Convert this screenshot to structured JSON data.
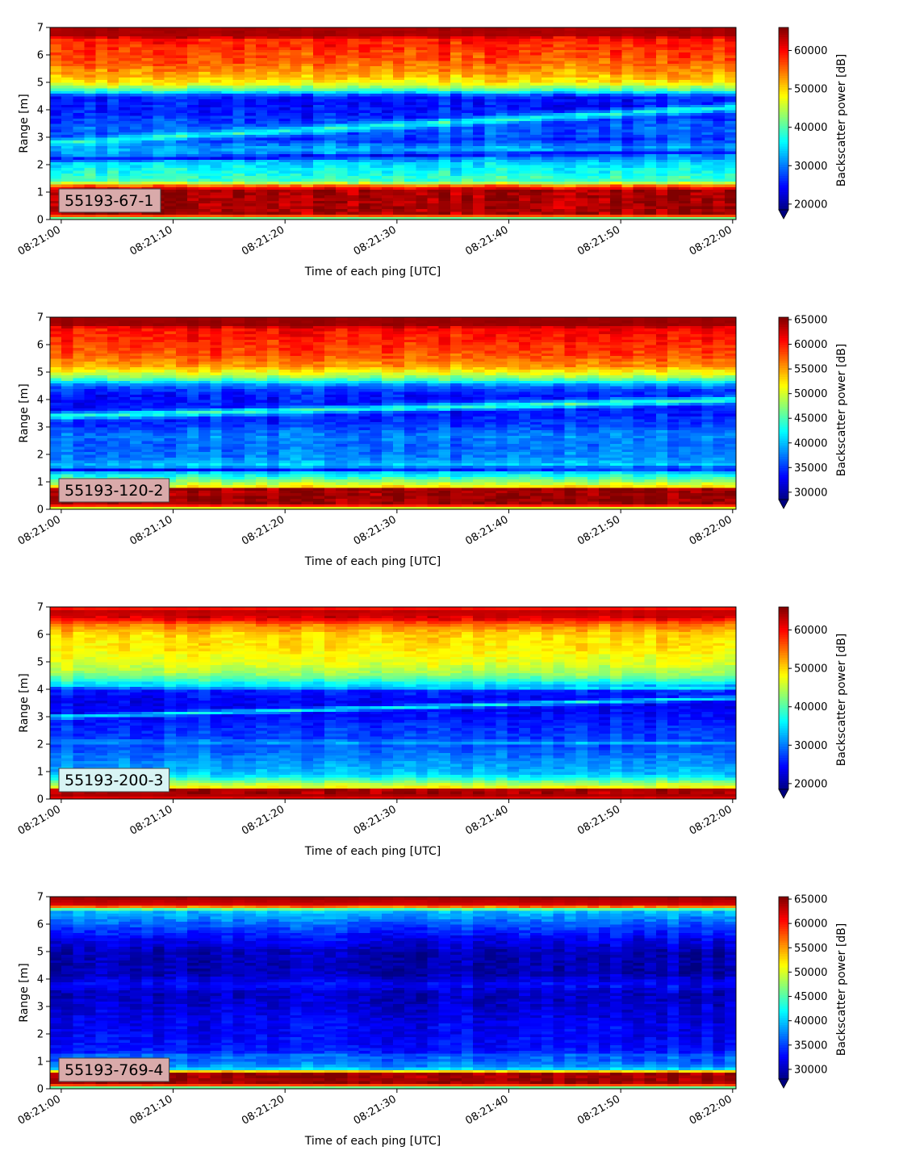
{
  "chart_data": [
    {
      "type": "heatmap",
      "panel_label": "55193-67-1",
      "xlabel": "Time of each ping [UTC]",
      "ylabel": "Range [m]",
      "x_tick_labels": [
        "08:21:00",
        "08:21:10",
        "08:21:20",
        "08:21:30",
        "08:21:40",
        "08:21:50",
        "08:22:00"
      ],
      "x_tick_seconds": [
        0,
        10,
        20,
        30,
        40,
        50,
        60
      ],
      "xlim_seconds": [
        -1,
        60.3
      ],
      "y_ticks": [
        0,
        1,
        2,
        3,
        4,
        5,
        6,
        7
      ],
      "ylim": [
        0,
        7
      ],
      "colorbar": {
        "label": "Backscatter power [dB]",
        "ticks": [
          20000,
          30000,
          40000,
          50000,
          60000
        ],
        "tick_labels": [
          "20000",
          "30000",
          "40000",
          "50000",
          "60000"
        ],
        "range": [
          18500,
          66000
        ],
        "extend": "min",
        "colormap": "jet"
      },
      "label_box_color": "#d9aaaa",
      "range_profile_db": [
        [
          0.0,
          34000
        ],
        [
          0.2,
          64000
        ],
        [
          1.1,
          64000
        ],
        [
          1.25,
          55000
        ],
        [
          1.4,
          40000
        ],
        [
          1.6,
          38000
        ],
        [
          1.9,
          36000
        ],
        [
          2.1,
          34000
        ],
        [
          2.3,
          30000
        ],
        [
          2.6,
          33000
        ],
        [
          2.9,
          27000
        ],
        [
          3.3,
          29000
        ],
        [
          3.8,
          26000
        ],
        [
          4.2,
          25000
        ],
        [
          4.5,
          26000
        ],
        [
          4.7,
          38000
        ],
        [
          5.0,
          49000
        ],
        [
          5.4,
          53000
        ],
        [
          5.8,
          56000
        ],
        [
          6.3,
          58000
        ],
        [
          6.6,
          59000
        ],
        [
          6.7,
          64000
        ],
        [
          7.0,
          64000
        ]
      ],
      "features": [
        {
          "start_range": 2.8,
          "end_range": 4.1,
          "width": 0.22,
          "level": 38000
        },
        {
          "start_range": 2.2,
          "end_range": 2.5,
          "width": 0.12,
          "level": 24000
        }
      ],
      "noise_db": 4000,
      "seed": 11
    },
    {
      "type": "heatmap",
      "panel_label": "55193-120-2",
      "xlabel": "Time of each ping [UTC]",
      "ylabel": "Range [m]",
      "x_tick_labels": [
        "08:21:00",
        "08:21:10",
        "08:21:20",
        "08:21:30",
        "08:21:40",
        "08:21:50",
        "08:22:00"
      ],
      "x_tick_seconds": [
        0,
        10,
        20,
        30,
        40,
        50,
        60
      ],
      "xlim_seconds": [
        -1,
        60.3
      ],
      "y_ticks": [
        0,
        1,
        2,
        3,
        4,
        5,
        6,
        7
      ],
      "ylim": [
        0,
        7
      ],
      "colorbar": {
        "label": "Backscatter power [dB]",
        "ticks": [
          30000,
          35000,
          40000,
          45000,
          50000,
          55000,
          60000,
          65000
        ],
        "tick_labels": [
          "30000",
          "35000",
          "40000",
          "45000",
          "50000",
          "55000",
          "60000",
          "65000"
        ],
        "range": [
          28500,
          65500
        ],
        "extend": "min",
        "colormap": "jet"
      },
      "label_box_color": "#d9aaaa",
      "range_profile_db": [
        [
          0.0,
          46000
        ],
        [
          0.2,
          64500
        ],
        [
          0.75,
          64500
        ],
        [
          0.85,
          52000
        ],
        [
          1.0,
          48000
        ],
        [
          1.3,
          42000
        ],
        [
          1.45,
          38000
        ],
        [
          1.6,
          41000
        ],
        [
          1.9,
          38000
        ],
        [
          2.3,
          37000
        ],
        [
          2.7,
          38000
        ],
        [
          3.1,
          35000
        ],
        [
          3.6,
          34000
        ],
        [
          4.2,
          34000
        ],
        [
          4.5,
          37000
        ],
        [
          4.8,
          47000
        ],
        [
          5.2,
          55000
        ],
        [
          5.6,
          58000
        ],
        [
          6.2,
          60000
        ],
        [
          6.6,
          61000
        ],
        [
          6.75,
          64500
        ],
        [
          7.0,
          64500
        ]
      ],
      "features": [
        {
          "start_range": 3.4,
          "end_range": 4.0,
          "width": 0.2,
          "level": 45000
        },
        {
          "start_range": 1.45,
          "end_range": 1.5,
          "width": 0.1,
          "level": 33000
        }
      ],
      "noise_db": 2800,
      "seed": 23
    },
    {
      "type": "heatmap",
      "panel_label": "55193-200-3",
      "xlabel": "Time of each ping [UTC]",
      "ylabel": "Range [m]",
      "x_tick_labels": [
        "08:21:00",
        "08:21:10",
        "08:21:20",
        "08:21:30",
        "08:21:40",
        "08:21:50",
        "08:22:00"
      ],
      "x_tick_seconds": [
        0,
        10,
        20,
        30,
        40,
        50,
        60
      ],
      "xlim_seconds": [
        -1,
        60.3
      ],
      "y_ticks": [
        0,
        1,
        2,
        3,
        4,
        5,
        6,
        7
      ],
      "ylim": [
        0,
        7
      ],
      "colorbar": {
        "label": "Backscatter power [dB]",
        "ticks": [
          20000,
          30000,
          40000,
          50000,
          60000
        ],
        "tick_labels": [
          "20000",
          "30000",
          "40000",
          "50000",
          "60000"
        ],
        "range": [
          18500,
          66000
        ],
        "extend": "min",
        "colormap": "jet"
      },
      "label_box_color": "#d8f4f4",
      "range_profile_db": [
        [
          0.0,
          60000
        ],
        [
          0.15,
          64000
        ],
        [
          0.35,
          64000
        ],
        [
          0.45,
          48000
        ],
        [
          0.7,
          40000
        ],
        [
          0.9,
          34000
        ],
        [
          1.2,
          32000
        ],
        [
          1.6,
          30000
        ],
        [
          2.0,
          28000
        ],
        [
          2.5,
          27000
        ],
        [
          3.0,
          25000
        ],
        [
          3.6,
          24000
        ],
        [
          4.0,
          26000
        ],
        [
          4.3,
          38000
        ],
        [
          4.6,
          44000
        ],
        [
          5.0,
          47000
        ],
        [
          5.5,
          49000
        ],
        [
          6.0,
          50000
        ],
        [
          6.4,
          55000
        ],
        [
          6.6,
          62000
        ],
        [
          6.9,
          63000
        ],
        [
          7.0,
          56000
        ]
      ],
      "features": [
        {
          "start_range": 3.0,
          "end_range": 3.7,
          "width": 0.12,
          "level": 37000
        },
        {
          "start_range": 4.15,
          "end_range": 4.05,
          "width": 0.12,
          "level": 36000
        },
        {
          "start_range": 2.1,
          "end_range": 2.05,
          "width": 0.1,
          "level": 33000
        }
      ],
      "noise_db": 3000,
      "seed": 37
    },
    {
      "type": "heatmap",
      "panel_label": "55193-769-4",
      "xlabel": "Time of each ping [UTC]",
      "ylabel": "Range [m]",
      "x_tick_labels": [
        "08:21:00",
        "08:21:10",
        "08:21:20",
        "08:21:30",
        "08:21:40",
        "08:21:50",
        "08:22:00"
      ],
      "x_tick_seconds": [
        0,
        10,
        20,
        30,
        40,
        50,
        60
      ],
      "xlim_seconds": [
        -1,
        60.3
      ],
      "y_ticks": [
        0,
        1,
        2,
        3,
        4,
        5,
        6,
        7
      ],
      "ylim": [
        0,
        7
      ],
      "colorbar": {
        "label": "Backscatter power [dB]",
        "ticks": [
          30000,
          35000,
          40000,
          45000,
          50000,
          55000,
          60000,
          65000
        ],
        "tick_labels": [
          "30000",
          "35000",
          "40000",
          "45000",
          "50000",
          "55000",
          "60000",
          "65000"
        ],
        "range": [
          28000,
          65500
        ],
        "extend": "min",
        "colormap": "jet"
      },
      "label_box_color": "#d9aaaa",
      "range_profile_db": [
        [
          0.0,
          40000
        ],
        [
          0.2,
          64500
        ],
        [
          0.6,
          64500
        ],
        [
          0.7,
          42000
        ],
        [
          0.85,
          38000
        ],
        [
          1.1,
          36000
        ],
        [
          1.4,
          33500
        ],
        [
          2.0,
          32500
        ],
        [
          2.6,
          32000
        ],
        [
          3.0,
          31000
        ],
        [
          3.5,
          30500
        ],
        [
          3.8,
          33000
        ],
        [
          4.2,
          30000
        ],
        [
          5.0,
          30000
        ],
        [
          5.6,
          33000
        ],
        [
          6.0,
          36000
        ],
        [
          6.5,
          40000
        ],
        [
          6.7,
          62000
        ],
        [
          7.0,
          64500
        ]
      ],
      "features": [
        {
          "start_range": 1.2,
          "end_range": 1.2,
          "width": 0.12,
          "level": 37000
        }
      ],
      "noise_db": 2600,
      "seed": 53
    }
  ]
}
